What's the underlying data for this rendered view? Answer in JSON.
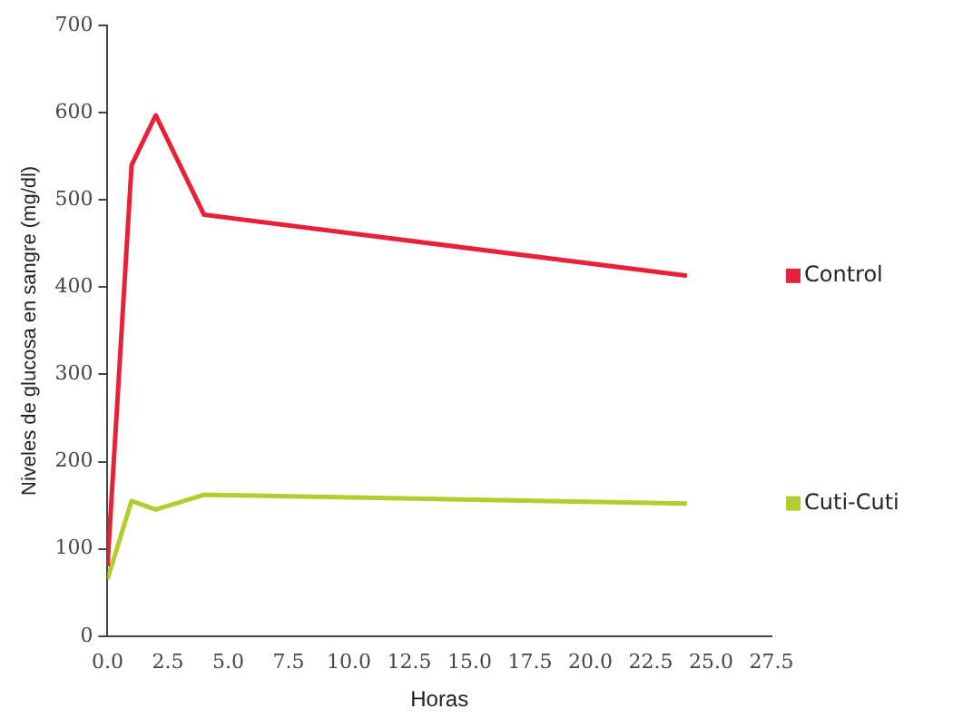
{
  "chart_data": {
    "type": "line",
    "xlabel": "Horas",
    "ylabel": "Niveles de glucosa en sangre (mg/dl)",
    "xlim": [
      0,
      27.5
    ],
    "xticks": [
      {
        "value": 0,
        "label": "0.0"
      },
      {
        "value": 2.5,
        "label": "2.5"
      },
      {
        "value": 5,
        "label": "5.0"
      },
      {
        "value": 7.5,
        "label": "7.5"
      },
      {
        "value": 10,
        "label": "10.0"
      },
      {
        "value": 12.5,
        "label": "12.5"
      },
      {
        "value": 15,
        "label": "15.0"
      },
      {
        "value": 17.5,
        "label": "17.5"
      },
      {
        "value": 20,
        "label": "20.0"
      },
      {
        "value": 22.5,
        "label": "22.5"
      },
      {
        "value": 25,
        "label": "25.0"
      },
      {
        "value": 27.5,
        "label": "27.5"
      }
    ],
    "ylim": [
      0,
      700
    ],
    "yticks": [
      0,
      100,
      200,
      300,
      400,
      500,
      600,
      700
    ],
    "x": [
      0,
      1,
      2,
      4,
      24
    ],
    "series": [
      {
        "name": "Control",
        "color": "#e8213a",
        "values": [
          80,
          540,
          597,
          483,
          413
        ]
      },
      {
        "name": "Cuti-Cuti",
        "color": "#b5cc2e",
        "values": [
          65,
          155,
          145,
          162,
          152
        ]
      }
    ],
    "grid": false,
    "marker": "none",
    "legend": "right"
  }
}
